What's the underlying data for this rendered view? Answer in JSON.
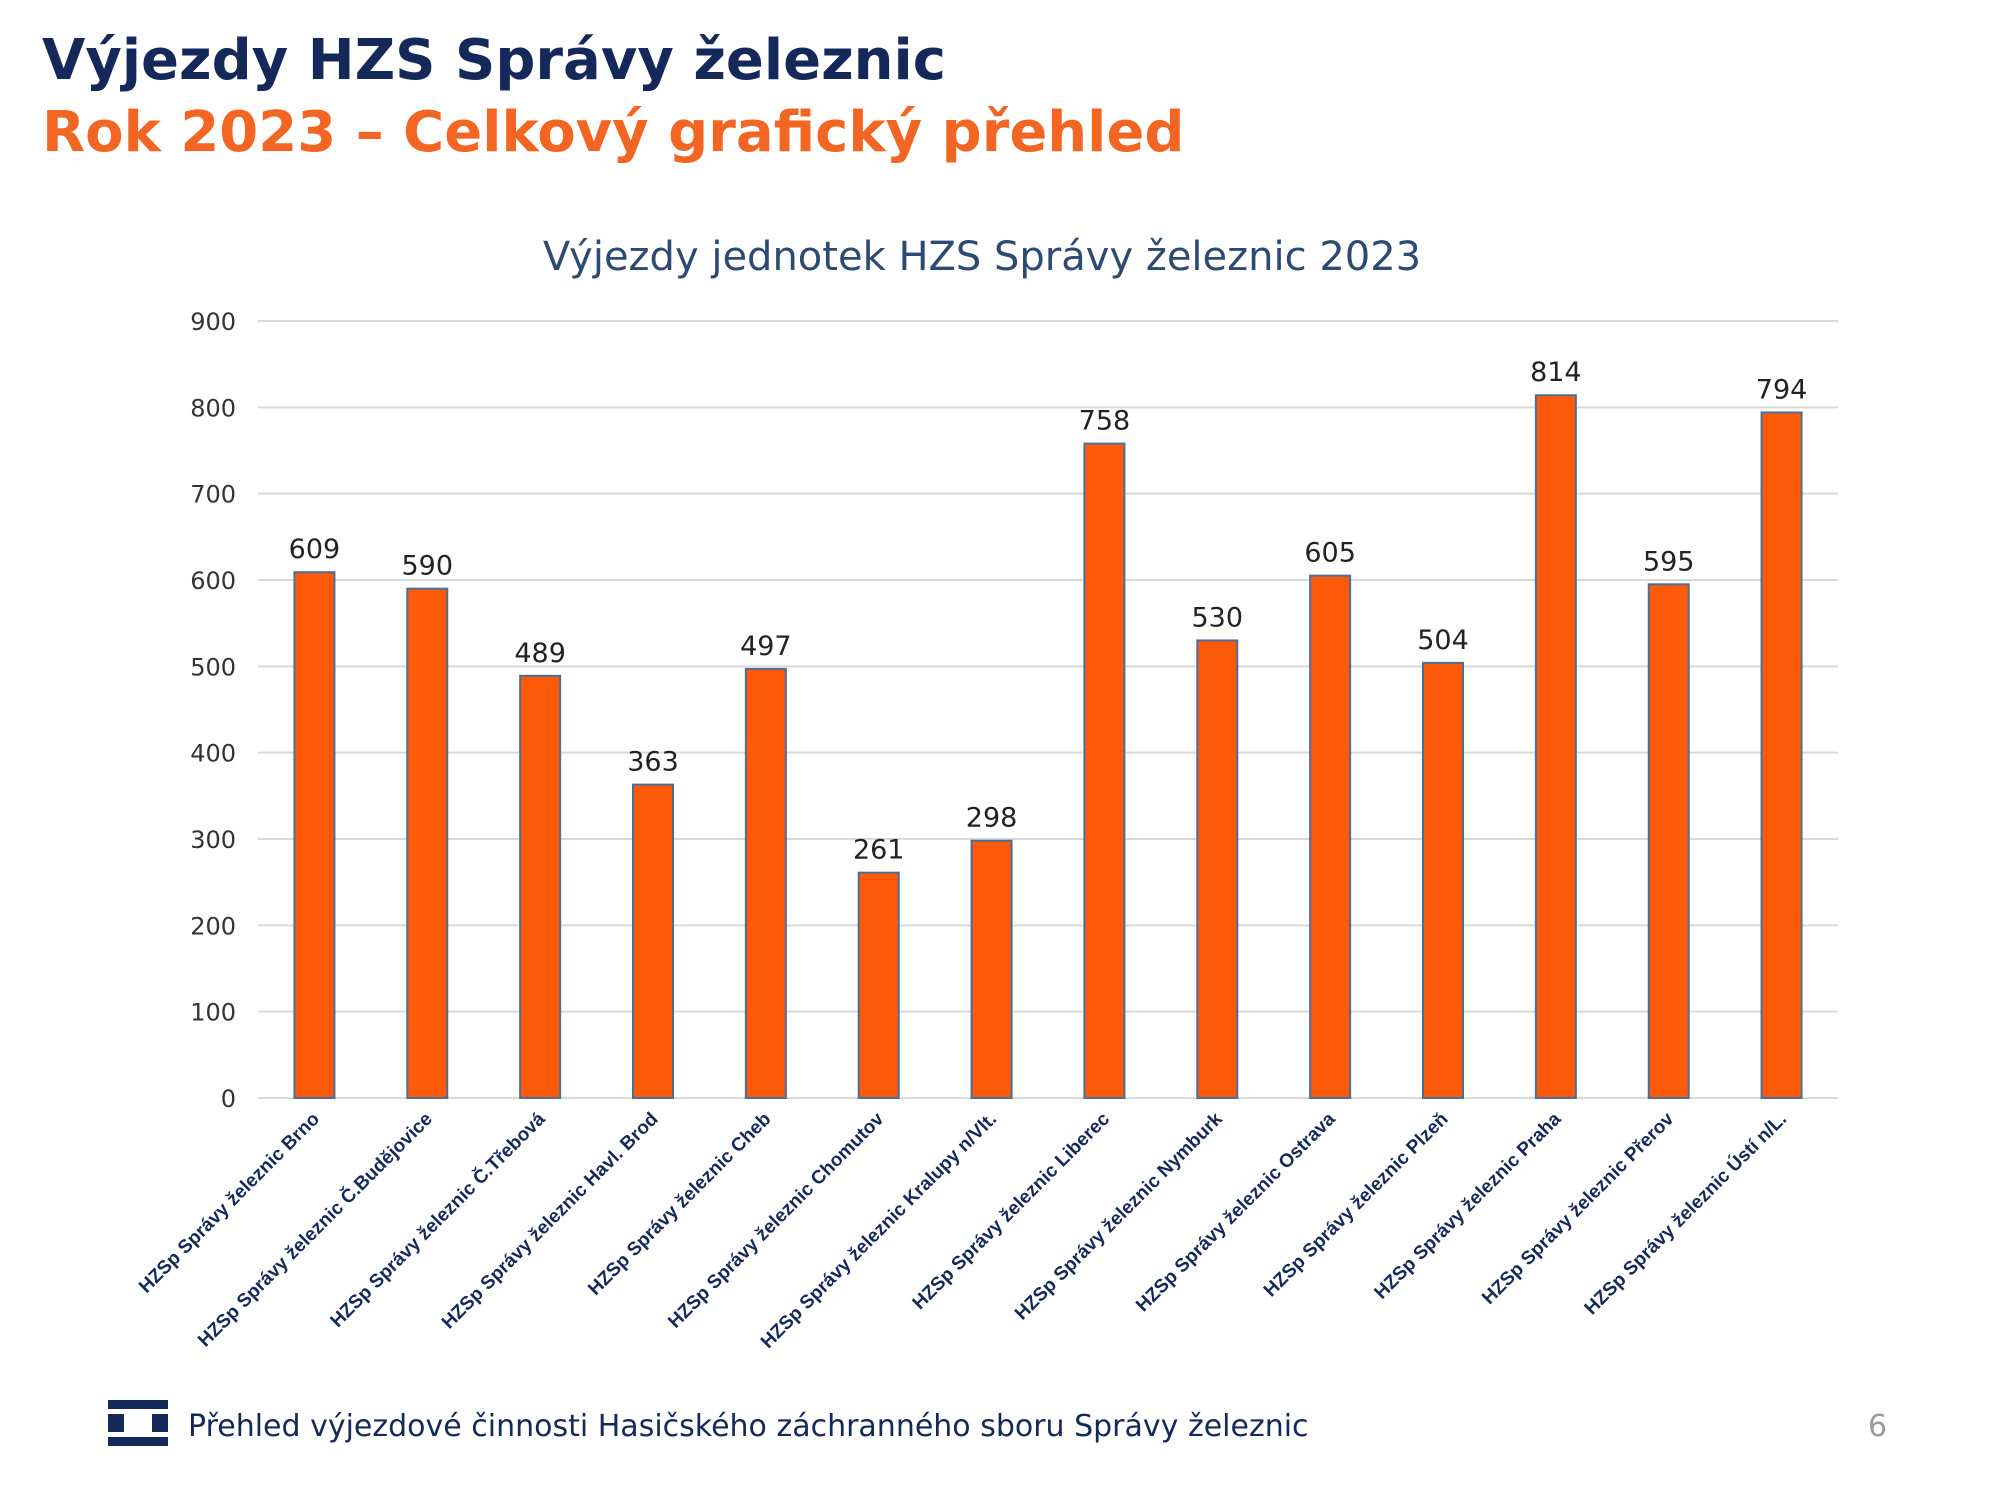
{
  "slide": {
    "title": "Výjezdy HZS Správy železnic",
    "subtitle": "Rok 2023 – Celkový grafický přehled"
  },
  "chart_data": {
    "type": "bar",
    "title": "Výjezdy jednotek HZS Správy železnic 2023",
    "xlabel": "",
    "ylabel": "",
    "ylim": [
      0,
      900
    ],
    "yticks": [
      0,
      100,
      200,
      300,
      400,
      500,
      600,
      700,
      800,
      900
    ],
    "grid": true,
    "legend": "none",
    "bar_color": "#ff5a0a",
    "bar_outline_color": "#4a6e9a",
    "categories": [
      "HZSp Správy železnic Brno",
      "HZSp Správy železnic Č.Budějovice",
      "HZSp Správy železnic Č.Třebová",
      "HZSp Správy železnic Havl. Brod",
      "HZSp Správy železnic Cheb",
      "HZSp Správy železnic Chomutov",
      "HZSp Správy železnic Kralupy n/Vlt.",
      "HZSp Správy železnic Liberec",
      "HZSp Správy železnic Nymburk",
      "HZSp Správy železnic Ostrava",
      "HZSp Správy železnic Plzeň",
      "HZSp Správy železnic Praha",
      "HZSp Správy železnic Přerov",
      "HZSp Správy železnic Ústí n/L."
    ],
    "values": [
      609,
      590,
      489,
      363,
      497,
      261,
      298,
      758,
      530,
      605,
      504,
      814,
      595,
      794
    ]
  },
  "footer": {
    "text": "Přehled výjezdové činnosti Hasičského záchranného sboru Správy železnic",
    "page_number": "6",
    "logo_icon": "sz-logo-icon"
  },
  "colors": {
    "title": "#14285a",
    "subtitle": "#f26522",
    "chart_title": "#2c4a72",
    "grid": "#d9d9d9",
    "tick_label": "#333333",
    "page_number": "#9a9a9a"
  }
}
